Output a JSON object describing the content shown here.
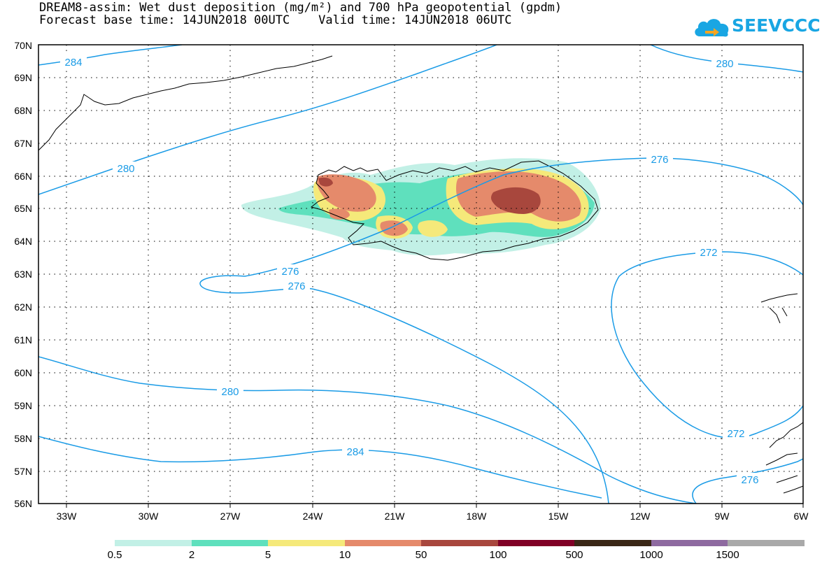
{
  "title_line1": "DREAM8-assim: Wet dust deposition (mg/m²) and 700 hPa geopotential (gpdm)",
  "title_line2": "Forecast base time: 14JUN2018 00UTC    Valid time: 14JUN2018 06UTC",
  "logo_text": "SEEVCCC",
  "logo_icon": "cloud-icon",
  "latitudes": [
    "70N",
    "69N",
    "68N",
    "67N",
    "66N",
    "65N",
    "64N",
    "63N",
    "62N",
    "61N",
    "60N",
    "59N",
    "58N",
    "57N",
    "56N"
  ],
  "longitudes": [
    "33W",
    "30W",
    "27W",
    "24W",
    "21W",
    "18W",
    "15W",
    "12W",
    "9W",
    "6W"
  ],
  "contour_labels": [
    "284",
    "280",
    "280",
    "276",
    "276",
    "276",
    "272",
    "272",
    "280",
    "284",
    "276"
  ],
  "contour_color": "#1a9be6",
  "colorbar": {
    "labels": [
      "0.5",
      "2",
      "5",
      "10",
      "50",
      "100",
      "500",
      "1000",
      "1500"
    ],
    "colors": [
      "#c2f0e6",
      "#5fe0bd",
      "#f5e97a",
      "#e58a6b",
      "#a8473d",
      "#800026",
      "#3a2716",
      "#8e6aa0",
      "#a9a9a9"
    ]
  }
}
